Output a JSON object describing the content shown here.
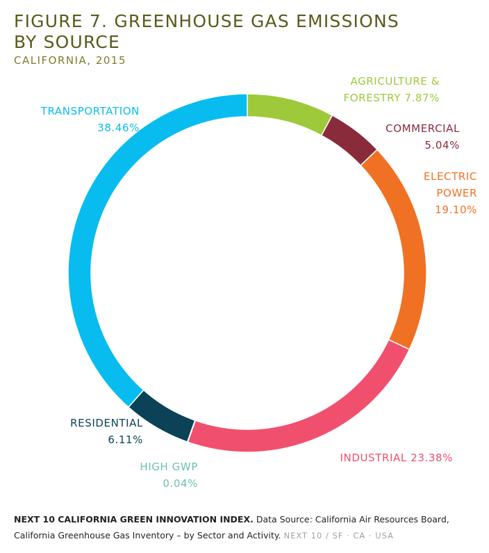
{
  "header": {
    "title_line1": "FIGURE 7. GREENHOUSE GAS EMISSIONS",
    "title_line2": "BY SOURCE",
    "subtitle": "CALIFORNIA, 2015"
  },
  "chart_data": {
    "type": "pie",
    "style": "donut",
    "start": "12 o'clock, clockwise",
    "slices": [
      {
        "label": "AGRICULTURE & FORESTRY",
        "label_lines": [
          "AGRICULTURE &",
          "FORESTRY 7.87%"
        ],
        "value": 7.87,
        "color": "#9dc93b"
      },
      {
        "label": "COMMERCIAL",
        "label_lines": [
          "COMMERCIAL",
          "5.04%"
        ],
        "value": 5.04,
        "color": "#8a2b3c"
      },
      {
        "label": "ELECTRIC POWER",
        "label_lines": [
          "ELECTRIC",
          "POWER",
          "19.10%"
        ],
        "value": 19.1,
        "color": "#f07124"
      },
      {
        "label": "INDUSTRIAL",
        "label_lines": [
          "INDUSTRIAL 23.38%"
        ],
        "value": 23.38,
        "color": "#f0506e"
      },
      {
        "label": "HIGH GWP",
        "label_lines": [
          "HIGH GWP",
          "0.04%"
        ],
        "value": 0.04,
        "color": "#6cc4a1"
      },
      {
        "label": "RESIDENTIAL",
        "label_lines": [
          "RESIDENTIAL",
          "6.11%"
        ],
        "value": 6.11,
        "color": "#0b4257"
      },
      {
        "label": "TRANSPORTATION",
        "label_lines": [
          "TRANSPORTATION",
          "38.46%"
        ],
        "value": 38.46,
        "color": "#08bcef"
      }
    ]
  },
  "footer": {
    "bold": "NEXT 10 CALIFORNIA GREEN INNOVATION INDEX.",
    "line1": " Data Source: California Air Resources Board,",
    "line2": "California Greenhouse Gas Inventory – by Sector and Activity.",
    "brand": "NEXT 10  /  SF · CA · USA"
  }
}
